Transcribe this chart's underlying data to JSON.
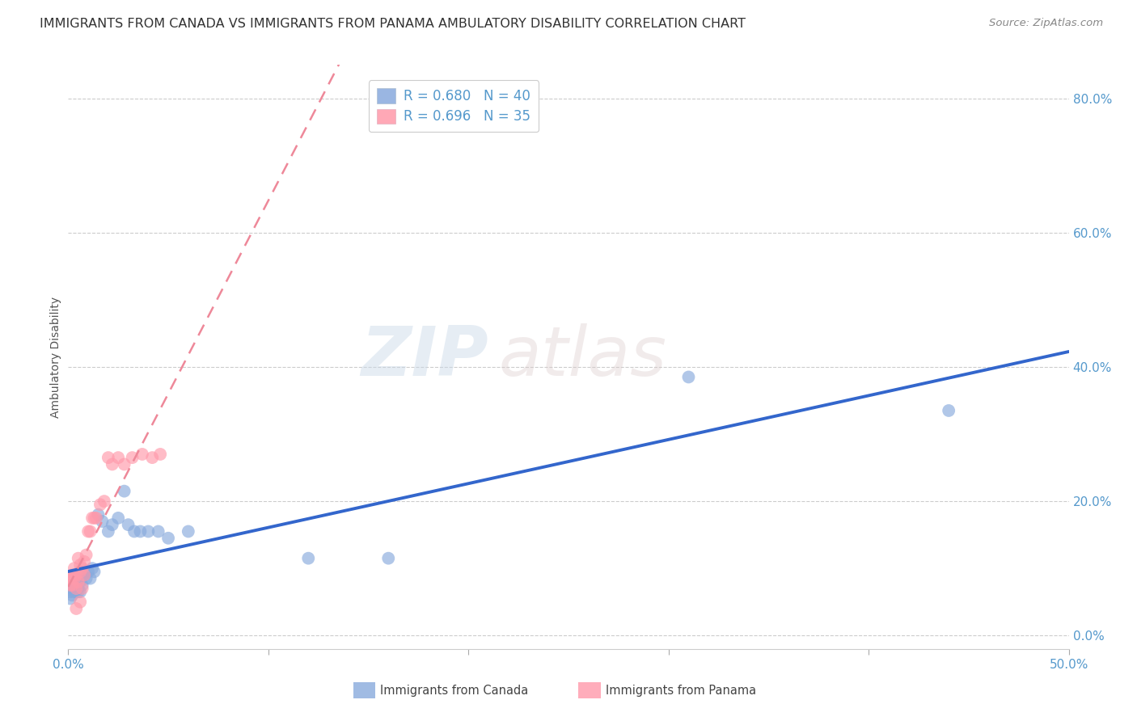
{
  "title": "IMMIGRANTS FROM CANADA VS IMMIGRANTS FROM PANAMA AMBULATORY DISABILITY CORRELATION CHART",
  "source": "Source: ZipAtlas.com",
  "ylabel_label": "Ambulatory Disability",
  "watermark_zip": "ZIP",
  "watermark_atlas": "atlas",
  "canada_R": 0.68,
  "canada_N": 40,
  "panama_R": 0.696,
  "panama_N": 35,
  "xlim": [
    0.0,
    0.5
  ],
  "ylim": [
    -0.02,
    0.85
  ],
  "ytick_vals": [
    0.0,
    0.2,
    0.4,
    0.6,
    0.8
  ],
  "xtick_vals": [
    0.0,
    0.1,
    0.2,
    0.3,
    0.4,
    0.5
  ],
  "canada_color": "#88AADD",
  "panama_color": "#FF99AA",
  "canada_line_color": "#3366CC",
  "panama_line_color": "#EE8899",
  "background_color": "#FFFFFF",
  "grid_color": "#CCCCCC",
  "title_color": "#333333",
  "source_color": "#888888",
  "tick_color": "#5599CC",
  "legend_text_color": "#5599CC",
  "ylabel_color": "#555555",
  "title_fontsize": 11.5,
  "axis_label_fontsize": 10,
  "tick_fontsize": 11,
  "legend_fontsize": 12,
  "source_fontsize": 9.5,
  "canada_x": [
    0.001,
    0.001,
    0.002,
    0.002,
    0.003,
    0.003,
    0.003,
    0.004,
    0.004,
    0.004,
    0.005,
    0.005,
    0.005,
    0.006,
    0.006,
    0.007,
    0.007,
    0.008,
    0.009,
    0.01,
    0.011,
    0.012,
    0.013,
    0.015,
    0.017,
    0.02,
    0.022,
    0.025,
    0.028,
    0.03,
    0.033,
    0.036,
    0.04,
    0.045,
    0.05,
    0.06,
    0.12,
    0.16,
    0.31,
    0.44
  ],
  "canada_y": [
    0.055,
    0.065,
    0.07,
    0.06,
    0.075,
    0.065,
    0.07,
    0.08,
    0.065,
    0.07,
    0.085,
    0.07,
    0.065,
    0.08,
    0.065,
    0.09,
    0.075,
    0.09,
    0.085,
    0.095,
    0.085,
    0.1,
    0.095,
    0.18,
    0.17,
    0.155,
    0.165,
    0.175,
    0.215,
    0.165,
    0.155,
    0.155,
    0.155,
    0.155,
    0.145,
    0.155,
    0.115,
    0.115,
    0.385,
    0.335
  ],
  "panama_x": [
    0.001,
    0.001,
    0.002,
    0.002,
    0.003,
    0.003,
    0.003,
    0.004,
    0.004,
    0.005,
    0.005,
    0.006,
    0.006,
    0.007,
    0.007,
    0.008,
    0.008,
    0.009,
    0.01,
    0.011,
    0.012,
    0.013,
    0.014,
    0.016,
    0.018,
    0.02,
    0.022,
    0.025,
    0.028,
    0.032,
    0.037,
    0.042,
    0.046,
    0.004,
    0.006
  ],
  "panama_y": [
    0.075,
    0.085,
    0.09,
    0.075,
    0.1,
    0.085,
    0.09,
    0.09,
    0.07,
    0.115,
    0.08,
    0.095,
    0.105,
    0.1,
    0.07,
    0.11,
    0.09,
    0.12,
    0.155,
    0.155,
    0.175,
    0.175,
    0.175,
    0.195,
    0.2,
    0.265,
    0.255,
    0.265,
    0.255,
    0.265,
    0.27,
    0.265,
    0.27,
    0.04,
    0.05
  ],
  "canada_line_start": 0.0,
  "canada_line_end": 0.5,
  "panama_line_start": 0.0,
  "panama_line_end": 0.5
}
